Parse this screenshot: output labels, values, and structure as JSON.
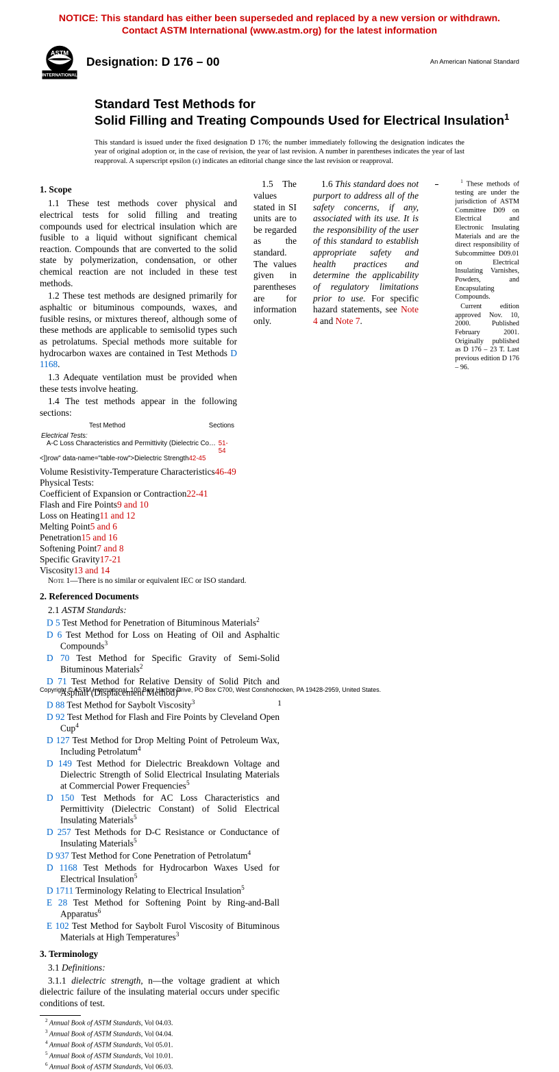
{
  "colors": {
    "link": "#0066cc",
    "red": "#cc0000",
    "text": "#000000",
    "bg": "#ffffff"
  },
  "notice": {
    "line1": "NOTICE: This standard has either been superseded and replaced by a new version or withdrawn.",
    "line2": "Contact ASTM International (www.astm.org) for the latest information"
  },
  "header": {
    "designation": "Designation: D 176 – 00",
    "ans": "An American National Standard"
  },
  "title": {
    "line1": "Standard Test Methods for",
    "line2": "Solid Filling and Treating Compounds Used for Electrical Insulation",
    "sup": "1"
  },
  "issued": "This standard is issued under the fixed designation D 176; the number immediately following the designation indicates the year of original adoption or, in the case of revision, the year of last revision. A number in parentheses indicates the year of last reapproval. A superscript epsilon (ε) indicates an editorial change since the last revision or reapproval.",
  "scope": {
    "head": "1. Scope",
    "p11": "1.1 These test methods cover physical and electrical tests for solid filling and treating compounds used for electrical insulation which are fusible to a liquid without significant chemical reaction. Compounds that are converted to the solid state by polymerization, condensation, or other chemical reaction are not included in these test methods.",
    "p12a": "1.2 These test methods are designed primarily for asphaltic or bituminous compounds, waxes, and fusible resins, or mixtures thereof, although some of these methods are applicable to semisolid types such as petrolatums. Special methods more suitable for hydrocarbon waxes are contained in Test Methods ",
    "p12_link": "D 1168",
    "p12b": ".",
    "p13": "1.3 Adequate ventilation must be provided when these tests involve heating.",
    "p14": "1.4 The test methods appear in the following sections:",
    "table": {
      "header_method": "Test Method",
      "header_sections": "Sections",
      "group1": "Electrical Tests:",
      "rows1": [
        {
          "label": "A-C Loss Characteristics and Permittivity (Dielectric Constant)",
          "sec": "51-54"
        },
        {
          "label": "Dielectric Strength",
          "sec": "42-45"
        },
        {
          "label": "Volume Resistivity-Temperature Characteristics",
          "sec": "46-49"
        }
      ],
      "group2": "Physical Tests:",
      "rows2": [
        {
          "label": "Coefficient of Expansion or Contraction",
          "sec": "22-41"
        },
        {
          "label": "Flash and Fire Points",
          "sec": "9 and 10"
        },
        {
          "label": "Loss on Heating",
          "sec": "11 and 12"
        },
        {
          "label": "Melting Point",
          "sec": "5 and 6"
        },
        {
          "label": "Penetration",
          "sec": "15 and 16"
        },
        {
          "label": "Softening Point",
          "sec": "7 and 8"
        },
        {
          "label": "Specific Gravity",
          "sec": "17-21"
        },
        {
          "label": "Viscosity",
          "sec": "13 and 14"
        }
      ]
    },
    "p15": "1.5 The values stated in SI units are to be regarded as the standard. The values given in parentheses are for information only.",
    "p16a": "1.6 ",
    "p16_italic": "This standard does not purport to address all of the safety concerns, if any, associated with its use. It is the responsibility of the user of this standard to establish appropriate safety and health practices and determine the applicability of regulatory limitations prior to use.",
    "p16b": " For specific hazard statements, see ",
    "p16_link1": "Note 4",
    "p16_and": " and ",
    "p16_link2": "Note 7",
    "p16c": "."
  },
  "note1_label": "Note 1—",
  "note1_text": "There is no similar or equivalent IEC or ISO standard.",
  "refdocs": {
    "head": "2. Referenced Documents",
    "sub": "2.1 ",
    "sub_italic": "ASTM Standards:",
    "items": [
      {
        "code": "D 5",
        "text": " Test Method for Penetration of Bituminous Materials",
        "sup": "2"
      },
      {
        "code": "D 6",
        "text": " Test Method for Loss on Heating of Oil and Asphaltic Compounds",
        "sup": "3"
      },
      {
        "code": "D 70",
        "text": " Test Method for Specific Gravity of Semi-Solid Bituminous Materials",
        "sup": "2"
      },
      {
        "code": "D 71",
        "text": " Test Method for Relative Density of Solid Pitch and Asphalt (Displacement Method)",
        "sup": "4"
      },
      {
        "code": "D 88",
        "text": " Test Method for Saybolt Viscosity",
        "sup": "3"
      },
      {
        "code": "D 92",
        "text": " Test Method for Flash and Fire Points by Cleveland Open Cup",
        "sup": "4"
      },
      {
        "code": "D 127",
        "text": " Test Method for Drop Melting Point of Petroleum Wax, Including Petrolatum",
        "sup": "4"
      },
      {
        "code": "D 149",
        "text": " Test Method for Dielectric Breakdown Voltage and Dielectric Strength of Solid Electrical Insulating Materials at Commercial Power Frequencies",
        "sup": "5"
      },
      {
        "code": "D 150",
        "text": " Test Methods for AC Loss Characteristics and Permittivity (Dielectric Constant) of Solid Electrical Insulating Materials",
        "sup": "5"
      },
      {
        "code": "D 257",
        "text": " Test Methods for D-C Resistance or Conductance of Insulating Materials",
        "sup": "5"
      },
      {
        "code": "D 937",
        "text": " Test Method for Cone Penetration of Petrolatum",
        "sup": "4"
      },
      {
        "code": "D 1168",
        "text": " Test Methods for Hydrocarbon Waxes Used for Electrical Insulation",
        "sup": "5"
      },
      {
        "code": "D 1711",
        "text": " Terminology Relating to Electrical Insulation",
        "sup": "5"
      },
      {
        "code": "E 28",
        "text": " Test Method for Softening Point by Ring-and-Ball Apparatus",
        "sup": "6"
      },
      {
        "code": "E 102",
        "text": " Test Method for Saybolt Furol Viscosity of Bituminous Materials at High Temperatures",
        "sup": "3"
      }
    ]
  },
  "terminology": {
    "head": "3. Terminology",
    "sub": "3.1 ",
    "sub_italic": "Definitions:",
    "p311a": "3.1.1 ",
    "p311_term": "dielectric strength",
    "p311_pos": ", n—",
    "p311b": "the voltage gradient at which dielectric failure of the insulating material occurs under specific conditions of test."
  },
  "footnotes_left": {
    "f1a": "1",
    "f1b": " These methods of testing are under the jurisdiction of ASTM Committee D09 on Electrical and Electronic Insulating Materials and are the direct responsibility of Subcommittee D09.01 on Electrical Insulating Varnishes, Powders, and Encapsulating Compounds.",
    "f1c": "Current edition approved Nov. 10, 2000. Published February 2001. Originally published as D 176 – 23 T. Last previous edition D 176 – 96."
  },
  "footnotes_right": [
    {
      "sup": "2",
      "text": " Annual Book of ASTM Standards",
      "vol": ", Vol 04.03."
    },
    {
      "sup": "3",
      "text": " Annual Book of ASTM Standards",
      "vol": ", Vol 04.04."
    },
    {
      "sup": "4",
      "text": " Annual Book of ASTM Standards",
      "vol": ", Vol 05.01."
    },
    {
      "sup": "5",
      "text": " Annual Book of ASTM Standards",
      "vol": ", Vol 10.01."
    },
    {
      "sup": "6",
      "text": " Annual Book of ASTM Standards",
      "vol": ", Vol 06.03."
    }
  ],
  "copyright": "Copyright © ASTM International, 100 Barr Harbor Drive, PO Box C700, West Conshohocken, PA 19428-2959, United States.",
  "pagenum": "1"
}
